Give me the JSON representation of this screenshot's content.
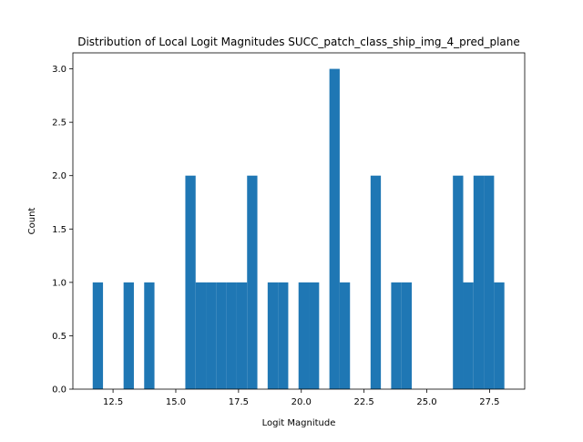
{
  "chart_data": {
    "type": "bar",
    "title": "Distribution of Local Logit Magnitudes SUCC_patch_class_ship_img_4_pred_plane",
    "xlabel": "Logit Magnitude",
    "ylabel": "Count",
    "xlim": [
      10.9,
      28.9
    ],
    "ylim": [
      0,
      3.15
    ],
    "x_ticks": [
      {
        "value": 12.5,
        "label": "12.5"
      },
      {
        "value": 15.0,
        "label": "15.0"
      },
      {
        "value": 17.5,
        "label": "17.5"
      },
      {
        "value": 20.0,
        "label": "20.0"
      },
      {
        "value": 22.5,
        "label": "22.5"
      },
      {
        "value": 25.0,
        "label": "25.0"
      },
      {
        "value": 27.5,
        "label": "27.5"
      }
    ],
    "y_ticks": [
      {
        "value": 0.0,
        "label": "0.0"
      },
      {
        "value": 0.5,
        "label": "0.5"
      },
      {
        "value": 1.0,
        "label": "1.0"
      },
      {
        "value": 1.5,
        "label": "1.5"
      },
      {
        "value": 2.0,
        "label": "2.0"
      },
      {
        "value": 2.5,
        "label": "2.5"
      },
      {
        "value": 3.0,
        "label": "3.0"
      }
    ],
    "bar_color": "#1f77b4",
    "grid": false,
    "bin_width": 0.41,
    "bins": [
      {
        "x0": 11.69,
        "count": 1
      },
      {
        "x0": 12.1,
        "count": 0
      },
      {
        "x0": 12.51,
        "count": 0
      },
      {
        "x0": 12.92,
        "count": 1
      },
      {
        "x0": 13.33,
        "count": 0
      },
      {
        "x0": 13.74,
        "count": 1
      },
      {
        "x0": 14.15,
        "count": 0
      },
      {
        "x0": 14.56,
        "count": 0
      },
      {
        "x0": 14.97,
        "count": 0
      },
      {
        "x0": 15.38,
        "count": 2
      },
      {
        "x0": 15.79,
        "count": 1
      },
      {
        "x0": 16.2,
        "count": 1
      },
      {
        "x0": 16.61,
        "count": 1
      },
      {
        "x0": 17.02,
        "count": 1
      },
      {
        "x0": 17.43,
        "count": 1
      },
      {
        "x0": 17.84,
        "count": 2
      },
      {
        "x0": 18.25,
        "count": 0
      },
      {
        "x0": 18.66,
        "count": 1
      },
      {
        "x0": 19.07,
        "count": 1
      },
      {
        "x0": 19.48,
        "count": 0
      },
      {
        "x0": 19.89,
        "count": 1
      },
      {
        "x0": 20.3,
        "count": 1
      },
      {
        "x0": 20.71,
        "count": 0
      },
      {
        "x0": 21.12,
        "count": 3
      },
      {
        "x0": 21.53,
        "count": 1
      },
      {
        "x0": 21.94,
        "count": 0
      },
      {
        "x0": 22.35,
        "count": 0
      },
      {
        "x0": 22.76,
        "count": 2
      },
      {
        "x0": 23.17,
        "count": 0
      },
      {
        "x0": 23.58,
        "count": 1
      },
      {
        "x0": 23.99,
        "count": 1
      },
      {
        "x0": 24.4,
        "count": 0
      },
      {
        "x0": 24.81,
        "count": 0
      },
      {
        "x0": 25.22,
        "count": 0
      },
      {
        "x0": 25.63,
        "count": 0
      },
      {
        "x0": 26.04,
        "count": 2
      },
      {
        "x0": 26.45,
        "count": 1
      },
      {
        "x0": 26.86,
        "count": 2
      },
      {
        "x0": 27.27,
        "count": 2
      },
      {
        "x0": 27.68,
        "count": 1
      }
    ]
  }
}
